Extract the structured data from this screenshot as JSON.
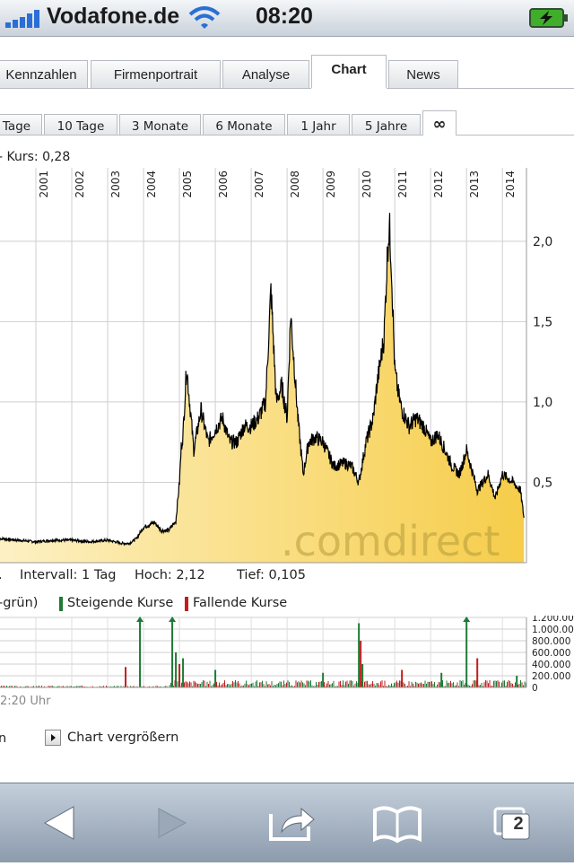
{
  "status_bar": {
    "carrier": "Vodafone.de",
    "time": "08:20"
  },
  "tabs": [
    "Kennzahlen",
    "Firmenportrait",
    "Analyse",
    "Chart",
    "News"
  ],
  "active_tab": "Chart",
  "ranges": [
    "Tage",
    "10 Tage",
    "3 Monate",
    "6 Monate",
    "1 Jahr",
    "5 Jahre",
    "∞"
  ],
  "active_range": "∞",
  "kurs_label": "- Kurs: 0,28",
  "price_chart": {
    "type": "area",
    "x": [
      2000.0,
      2000.5,
      2001.0,
      2001.5,
      2002.0,
      2002.5,
      2003.0,
      2003.4,
      2003.6,
      2003.8,
      2004.0,
      2004.3,
      2004.5,
      2004.7,
      2004.9,
      2005.0,
      2005.05,
      2005.1,
      2005.2,
      2005.4,
      2005.6,
      2005.8,
      2006.0,
      2006.2,
      2006.4,
      2006.6,
      2006.8,
      2007.0,
      2007.2,
      2007.4,
      2007.55,
      2007.7,
      2007.85,
      2008.0,
      2008.1,
      2008.3,
      2008.45,
      2008.6,
      2008.8,
      2009.0,
      2009.3,
      2009.6,
      2009.8,
      2010.0,
      2010.2,
      2010.4,
      2010.5,
      2010.7,
      2010.8,
      2010.85,
      2010.9,
      2011.0,
      2011.1,
      2011.2,
      2011.4,
      2011.6,
      2011.8,
      2012.0,
      2012.2,
      2012.4,
      2012.6,
      2012.8,
      2013.0,
      2013.3,
      2013.6,
      2013.8,
      2014.0,
      2014.3,
      2014.5,
      2014.6
    ],
    "y": [
      0.15,
      0.14,
      0.13,
      0.14,
      0.14,
      0.13,
      0.14,
      0.12,
      0.12,
      0.15,
      0.22,
      0.25,
      0.2,
      0.2,
      0.26,
      0.5,
      0.72,
      0.8,
      1.22,
      0.7,
      0.95,
      0.75,
      0.83,
      0.9,
      0.75,
      0.75,
      0.85,
      0.85,
      0.9,
      1.0,
      1.7,
      1.0,
      1.1,
      0.9,
      1.55,
      0.9,
      0.55,
      0.75,
      0.78,
      0.75,
      0.6,
      0.62,
      0.6,
      0.5,
      0.75,
      0.9,
      1.1,
      1.4,
      1.95,
      2.1,
      1.9,
      1.2,
      1.05,
      0.95,
      0.85,
      0.9,
      0.85,
      0.75,
      0.8,
      0.7,
      0.6,
      0.55,
      0.7,
      0.45,
      0.55,
      0.4,
      0.55,
      0.5,
      0.45,
      0.28
    ],
    "years": [
      "2001",
      "2002",
      "2003",
      "2004",
      "2005",
      "2006",
      "2007",
      "2008",
      "2009",
      "2010",
      "2011",
      "2012",
      "2013",
      "2014"
    ],
    "y_ticks": [
      "2,0",
      "1,5",
      "1,0",
      "0,5"
    ],
    "ylim": [
      0,
      2.2
    ],
    "watermark": ".comdirect",
    "fill_color": "#f6cd4a",
    "fill_color_light": "#fdf1c4",
    "line_color": "#000000"
  },
  "stats": {
    "intervall": "Intervall: 1 Tag",
    "hoch": "Hoch: 2,12",
    "tief": "Tief: 0,105"
  },
  "legend": {
    "prefix": "-grün)",
    "up": "Steigende Kurse",
    "down": "Fallende Kurse",
    "up_color": "#1f7a36",
    "down_color": "#c21d1d"
  },
  "volume_chart": {
    "type": "bar",
    "y_ticks": [
      "1.200.000",
      "1.000.000",
      "800.000",
      "600.000",
      "400.000",
      "200.000",
      "0"
    ],
    "ylim": [
      0,
      1200000
    ],
    "spikes": [
      {
        "x": 2003.9,
        "value": 1250000,
        "color": "green"
      },
      {
        "x": 2004.8,
        "value": 1250000,
        "color": "green"
      },
      {
        "x": 2004.9,
        "value": 600000,
        "color": "green"
      },
      {
        "x": 2005.0,
        "value": 400000,
        "color": "red"
      },
      {
        "x": 2005.1,
        "value": 500000,
        "color": "green"
      },
      {
        "x": 2003.5,
        "value": 350000,
        "color": "red"
      },
      {
        "x": 2006.0,
        "value": 300000,
        "color": "green"
      },
      {
        "x": 2009.0,
        "value": 250000,
        "color": "green"
      },
      {
        "x": 2010.0,
        "value": 1100000,
        "color": "green"
      },
      {
        "x": 2010.05,
        "value": 800000,
        "color": "red"
      },
      {
        "x": 2010.1,
        "value": 400000,
        "color": "green"
      },
      {
        "x": 2011.2,
        "value": 300000,
        "color": "red"
      },
      {
        "x": 2012.3,
        "value": 250000,
        "color": "green"
      },
      {
        "x": 2013.0,
        "value": 1250000,
        "color": "green"
      },
      {
        "x": 2013.3,
        "value": 500000,
        "color": "red"
      },
      {
        "x": 2014.4,
        "value": 200000,
        "color": "green"
      }
    ]
  },
  "time_label": "2:20 Uhr",
  "footer": {
    "left": "n",
    "enlarge": "Chart vergrößern"
  },
  "toolbar": {
    "tabs_count": "2"
  }
}
